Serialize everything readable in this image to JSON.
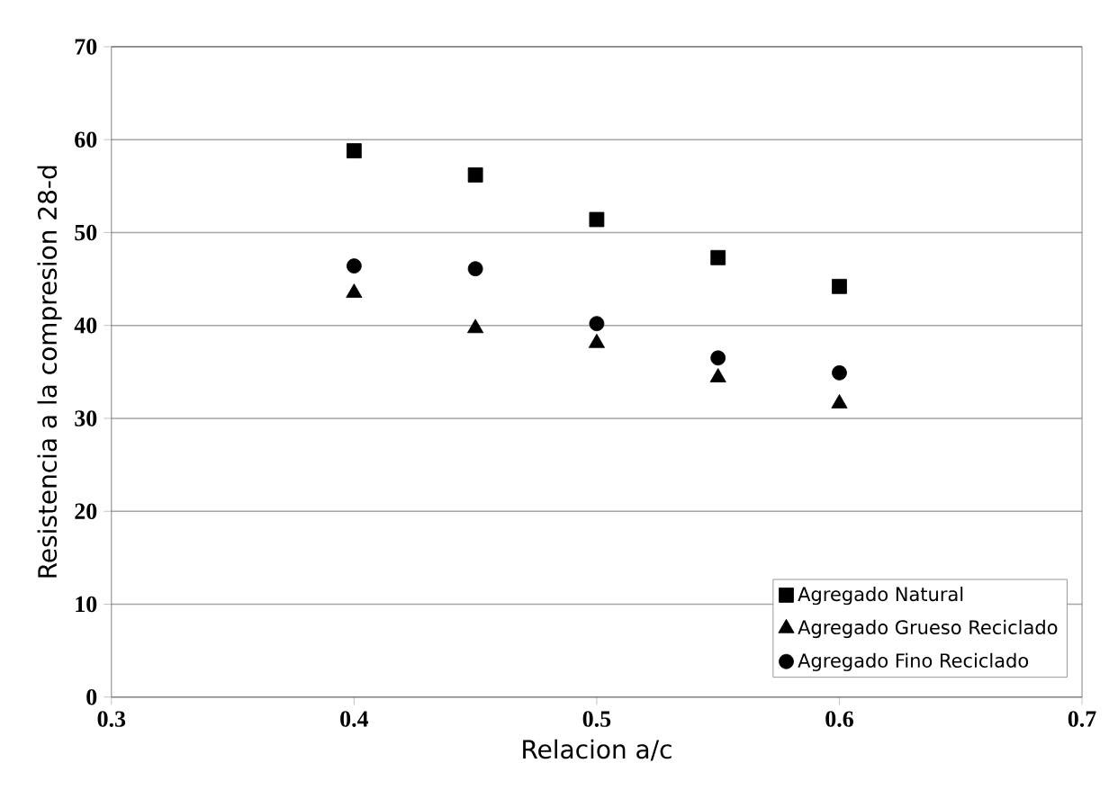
{
  "chart_data": {
    "type": "scatter",
    "xlabel": "Relacion  a/c",
    "ylabel": "Resistencia a la compresion 28-d",
    "x": [
      0.4,
      0.45,
      0.5,
      0.55,
      0.6
    ],
    "series": [
      {
        "name": "Agregado Natural",
        "color": "#000000",
        "marker": "square",
        "values": [
          58.8,
          56.2,
          51.4,
          47.3,
          44.2
        ]
      },
      {
        "name": "Agregado Grueso Reciclado",
        "color": "#000000",
        "marker": "triangle",
        "values": [
          43.5,
          39.7,
          38.1,
          34.4,
          31.6
        ]
      },
      {
        "name": "Agregado Fino Reciclado",
        "color": "#000000",
        "marker": "circle",
        "values": [
          46.4,
          46.1,
          40.2,
          36.5,
          34.9
        ]
      }
    ],
    "xlim": [
      0.3,
      0.7
    ],
    "xticks": [
      0.3,
      0.4,
      0.5,
      0.6,
      0.7
    ],
    "ylim": [
      0,
      70
    ],
    "yticks": [
      0,
      10,
      20,
      30,
      40,
      50,
      60,
      70
    ],
    "grid": "y",
    "legend": "bottom right"
  }
}
